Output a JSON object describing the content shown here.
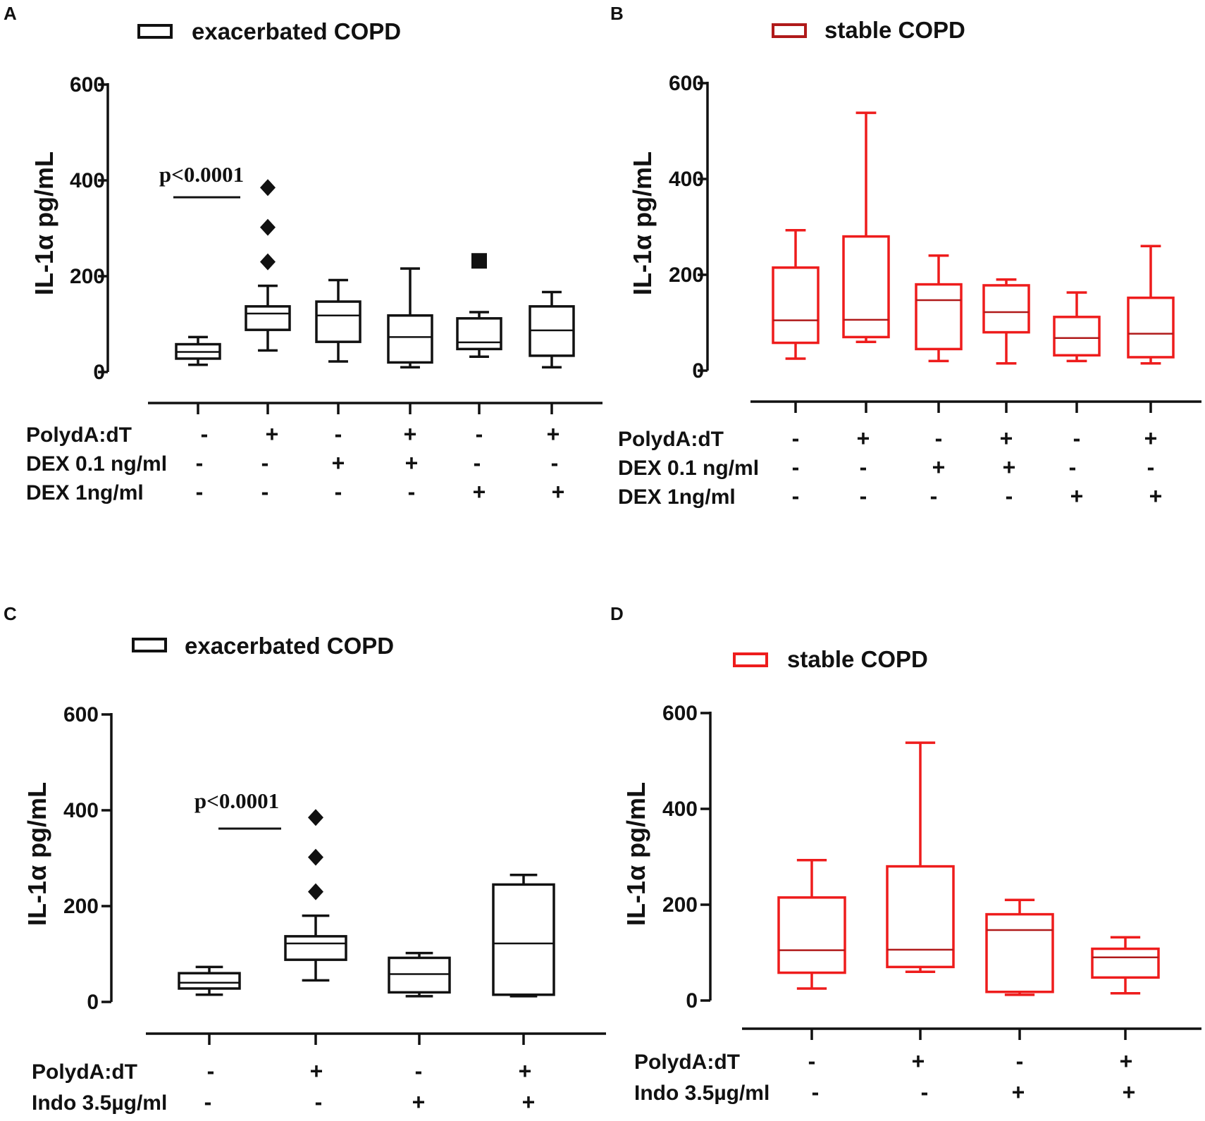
{
  "figure": {
    "panels": [
      {
        "letter": "A",
        "legend": "exacerbated COPD",
        "color": "#111111",
        "median_color": "#111111",
        "yticks": [
          "600",
          "400",
          "200",
          "0"
        ],
        "ylabel": "IL-1α pg/mL",
        "row_labels": [
          "PolydA:dT",
          "DEX 0.1 ng/ml",
          "DEX 1ng/ml"
        ],
        "signs": [
          [
            "-",
            "+",
            "-",
            "+",
            "-",
            "+"
          ],
          [
            "-",
            "-",
            "+",
            "+",
            "-",
            "-"
          ],
          [
            "-",
            "-",
            "-",
            "-",
            "+",
            "+"
          ]
        ],
        "pvalue": "p<0.0001"
      },
      {
        "letter": "B",
        "legend": "stable COPD",
        "color": "#ee1c1c",
        "median_color": "#b01a1a",
        "yticks": [
          "600",
          "400",
          "200",
          "0"
        ],
        "ylabel": "IL-1α pg/mL",
        "row_labels": [
          "PolydA:dT",
          "DEX 0.1 ng/ml",
          "DEX 1ng/ml"
        ],
        "signs": [
          [
            "-",
            "+",
            "-",
            "+",
            "-",
            "+"
          ],
          [
            "-",
            "-",
            "+",
            "+",
            "-",
            "-"
          ],
          [
            "-",
            "-",
            "-",
            "-",
            "+",
            "+"
          ]
        ]
      },
      {
        "letter": "C",
        "legend": "exacerbated COPD",
        "color": "#111111",
        "median_color": "#111111",
        "yticks": [
          "600",
          "400",
          "200",
          "0"
        ],
        "ylabel": "IL-1α pg/mL",
        "row_labels": [
          "PolydA:dT",
          "Indo 3.5µg/ml"
        ],
        "signs": [
          [
            "-",
            "+",
            "-",
            "+"
          ],
          [
            "-",
            "-",
            "+",
            "+"
          ]
        ],
        "pvalue": "p<0.0001"
      },
      {
        "letter": "D",
        "legend": "stable COPD",
        "color": "#ee1c1c",
        "median_color": "#b01a1a",
        "yticks": [
          "600",
          "400",
          "200",
          "0"
        ],
        "ylabel": "IL-1α pg/mL",
        "row_labels": [
          "PolydA:dT",
          "Indo 3.5µg/ml"
        ],
        "signs": [
          [
            "-",
            "+",
            "-",
            "+"
          ],
          [
            "-",
            "-",
            "+",
            "+"
          ]
        ]
      }
    ]
  },
  "chart_data": [
    {
      "type": "box",
      "panel": "A",
      "title": "exacerbated COPD",
      "ylabel": "IL-1α pg/mL",
      "ylim": [
        0,
        600
      ],
      "categories": [
        "PolydA:dT - / DEX 0.1 - / DEX 1 -",
        "PolydA:dT + / DEX 0.1 - / DEX 1 -",
        "PolydA:dT - / DEX 0.1 + / DEX 1 -",
        "PolydA:dT + / DEX 0.1 + / DEX 1 -",
        "PolydA:dT - / DEX 0.1 - / DEX 1 +",
        "PolydA:dT + / DEX 0.1 - / DEX 1 +"
      ],
      "boxes": [
        {
          "min": 15,
          "q1": 28,
          "median": 42,
          "q3": 58,
          "max": 73
        },
        {
          "min": 45,
          "q1": 88,
          "median": 122,
          "q3": 137,
          "max": 180,
          "outliers": [
            230,
            302,
            385
          ],
          "outlier_marker": "diamond"
        },
        {
          "min": 22,
          "q1": 63,
          "median": 118,
          "q3": 147,
          "max": 192
        },
        {
          "min": 10,
          "q1": 20,
          "median": 73,
          "q3": 118,
          "max": 216
        },
        {
          "min": 32,
          "q1": 48,
          "median": 62,
          "q3": 112,
          "max": 125,
          "outliers": [
            232
          ],
          "outlier_marker": "square"
        },
        {
          "min": 10,
          "q1": 34,
          "median": 87,
          "q3": 137,
          "max": 167
        }
      ],
      "annotations": [
        {
          "text": "p<0.0001",
          "between": [
            0,
            1
          ],
          "y": 365
        }
      ]
    },
    {
      "type": "box",
      "panel": "B",
      "title": "stable COPD",
      "ylabel": "IL-1α pg/mL",
      "ylim": [
        0,
        600
      ],
      "categories": [
        "PolydA:dT - / DEX 0.1 - / DEX 1 -",
        "PolydA:dT + / DEX 0.1 - / DEX 1 -",
        "PolydA:dT - / DEX 0.1 + / DEX 1 -",
        "PolydA:dT + / DEX 0.1 + / DEX 1 -",
        "PolydA:dT - / DEX 0.1 - / DEX 1 +",
        "PolydA:dT + / DEX 0.1 - / DEX 1 +"
      ],
      "boxes": [
        {
          "min": 25,
          "q1": 58,
          "median": 105,
          "q3": 215,
          "max": 293
        },
        {
          "min": 60,
          "q1": 70,
          "median": 106,
          "q3": 280,
          "max": 538
        },
        {
          "min": 20,
          "q1": 45,
          "median": 147,
          "q3": 180,
          "max": 240
        },
        {
          "min": 15,
          "q1": 80,
          "median": 122,
          "q3": 178,
          "max": 190
        },
        {
          "min": 20,
          "q1": 32,
          "median": 68,
          "q3": 112,
          "max": 163
        },
        {
          "min": 15,
          "q1": 28,
          "median": 77,
          "q3": 152,
          "max": 260
        }
      ]
    },
    {
      "type": "box",
      "panel": "C",
      "title": "exacerbated COPD",
      "ylabel": "IL-1α pg/mL",
      "ylim": [
        0,
        600
      ],
      "categories": [
        "PolydA:dT - / Indo -",
        "PolydA:dT + / Indo -",
        "PolydA:dT - / Indo +",
        "PolydA:dT + / Indo +"
      ],
      "boxes": [
        {
          "min": 15,
          "q1": 28,
          "median": 40,
          "q3": 60,
          "max": 73
        },
        {
          "min": 45,
          "q1": 88,
          "median": 122,
          "q3": 137,
          "max": 180,
          "outliers": [
            230,
            302,
            385
          ],
          "outlier_marker": "diamond"
        },
        {
          "min": 12,
          "q1": 20,
          "median": 58,
          "q3": 92,
          "max": 102
        },
        {
          "min": 12,
          "q1": 15,
          "median": 122,
          "q3": 245,
          "max": 265
        }
      ],
      "annotations": [
        {
          "text": "p<0.0001",
          "between": [
            0,
            1
          ],
          "y": 360
        }
      ]
    },
    {
      "type": "box",
      "panel": "D",
      "title": "stable COPD",
      "ylabel": "IL-1α pg/mL",
      "ylim": [
        0,
        600
      ],
      "categories": [
        "PolydA:dT - / Indo -",
        "PolydA:dT + / Indo -",
        "PolydA:dT - / Indo +",
        "PolydA:dT + / Indo +"
      ],
      "boxes": [
        {
          "min": 25,
          "q1": 58,
          "median": 105,
          "q3": 215,
          "max": 293
        },
        {
          "min": 60,
          "q1": 70,
          "median": 106,
          "q3": 280,
          "max": 538
        },
        {
          "min": 12,
          "q1": 18,
          "median": 147,
          "q3": 180,
          "max": 210
        },
        {
          "min": 15,
          "q1": 48,
          "median": 90,
          "q3": 108,
          "max": 132
        }
      ]
    }
  ]
}
